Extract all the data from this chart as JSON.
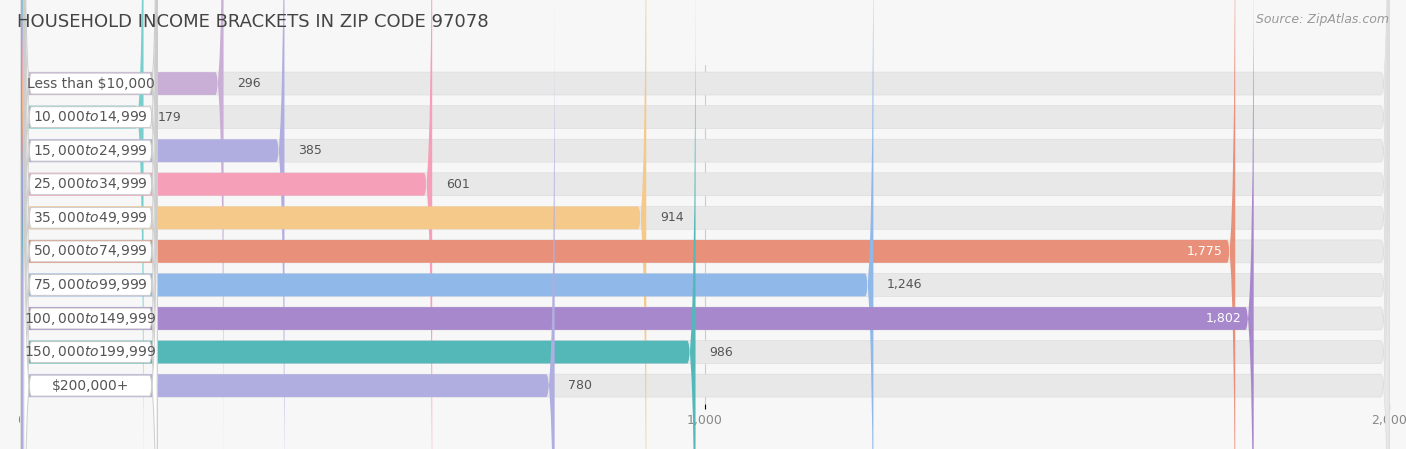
{
  "title": "HOUSEHOLD INCOME BRACKETS IN ZIP CODE 97078",
  "source": "Source: ZipAtlas.com",
  "categories": [
    "Less than $10,000",
    "$10,000 to $14,999",
    "$15,000 to $24,999",
    "$25,000 to $34,999",
    "$35,000 to $49,999",
    "$50,000 to $74,999",
    "$75,000 to $99,999",
    "$100,000 to $149,999",
    "$150,000 to $199,999",
    "$200,000+"
  ],
  "values": [
    296,
    179,
    385,
    601,
    914,
    1775,
    1246,
    1802,
    986,
    780
  ],
  "bar_colors": [
    "#c9aed6",
    "#79cece",
    "#b0aee0",
    "#f5a0b8",
    "#f5c98a",
    "#e8907a",
    "#90b8e8",
    "#a888cc",
    "#55b8b8",
    "#b0aee0"
  ],
  "xlim": [
    0,
    2000
  ],
  "xticks": [
    0,
    1000,
    2000
  ],
  "background_color": "#f7f7f7",
  "bar_bg_color": "#e8e8e8",
  "title_fontsize": 13,
  "label_fontsize": 10,
  "value_fontsize": 9,
  "source_fontsize": 9,
  "value_inside_threshold": 1400
}
